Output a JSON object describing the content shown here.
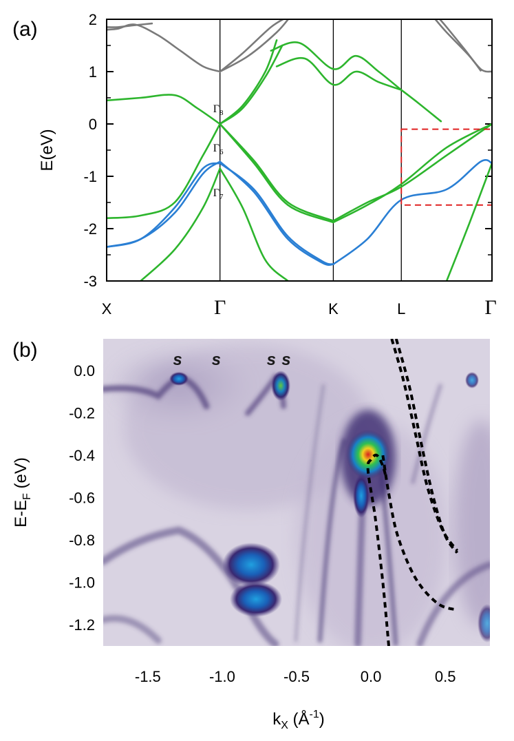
{
  "chart_data": [
    {
      "panel_label": "(a)",
      "type": "line",
      "ylabel": "E(eV)",
      "ylim": [
        -3,
        2
      ],
      "yticks": [
        "2",
        "1",
        "0",
        "-1",
        "-2",
        "-3"
      ],
      "k_points": [
        "X",
        "Γ",
        "K",
        "L",
        "Γ"
      ],
      "k_positions": [
        0,
        1,
        2,
        2.6,
        3.4
      ],
      "gamma_labels": [
        "Γ8",
        "Γ6",
        "Γ7"
      ],
      "colors": {
        "upper": "#7a7a7a",
        "valence": "#2db52d",
        "split_off": "#2a7fd4",
        "box": "#e02020"
      },
      "highlight_box": {
        "k": [
          2.6,
          3.4
        ],
        "E": [
          -1.55,
          -0.1
        ]
      },
      "series": [
        {
          "group": "upper",
          "x": [
            0,
            0.1,
            0.25,
            0.45,
            0.65,
            0.85,
            1.0
          ],
          "y": [
            1.8,
            1.82,
            1.9,
            1.7,
            1.4,
            1.1,
            1.0
          ]
        },
        {
          "group": "upper",
          "x": [
            0,
            0.1,
            0.22,
            0.4
          ],
          "y": [
            1.85,
            1.85,
            1.88,
            1.92
          ]
        },
        {
          "group": "upper",
          "x": [
            1.0,
            1.2,
            1.45,
            1.6
          ],
          "y": [
            1.0,
            1.35,
            1.85,
            2.05
          ]
        },
        {
          "group": "upper",
          "x": [
            1.0,
            1.25,
            1.5,
            1.62
          ],
          "y": [
            1.0,
            1.3,
            1.75,
            2.05
          ]
        },
        {
          "group": "upper",
          "x": [
            3.3,
            3.2,
            3.0,
            2.9
          ],
          "y": [
            1.02,
            1.3,
            1.75,
            2.0
          ]
        },
        {
          "group": "upper",
          "x": [
            3.4,
            3.3,
            3.15,
            3.0,
            2.92
          ],
          "y": [
            1.0,
            1.05,
            1.45,
            1.85,
            2.05
          ]
        },
        {
          "group": "valence",
          "x": [
            0,
            0.3,
            0.6,
            0.8,
            1.0
          ],
          "y": [
            0.45,
            0.5,
            0.55,
            0.3,
            0.0
          ]
        },
        {
          "group": "valence",
          "x": [
            1.0,
            1.2,
            1.4,
            1.5
          ],
          "y": [
            0.0,
            0.35,
            1.0,
            1.6
          ]
        },
        {
          "group": "valence",
          "x": [
            1.0,
            1.2,
            1.4,
            1.55
          ],
          "y": [
            0.0,
            0.3,
            0.9,
            1.5
          ]
        },
        {
          "group": "valence",
          "x": [
            1.45,
            1.7,
            2.0,
            2.2,
            2.4,
            2.6
          ],
          "y": [
            1.4,
            1.55,
            1.05,
            1.3,
            1.0,
            0.65
          ]
        },
        {
          "group": "valence",
          "x": [
            1.5,
            1.75,
            2.0,
            2.2,
            2.4,
            2.6
          ],
          "y": [
            1.1,
            1.25,
            0.75,
            1.0,
            0.8,
            0.65
          ]
        },
        {
          "group": "valence",
          "x": [
            2.6,
            2.75,
            2.95
          ],
          "y": [
            0.65,
            0.4,
            0.05
          ]
        },
        {
          "group": "valence",
          "x": [
            0,
            0.3,
            0.6,
            0.85,
            1.0
          ],
          "y": [
            -1.8,
            -1.75,
            -1.5,
            -0.6,
            0.0
          ]
        },
        {
          "group": "valence",
          "x": [
            1.0,
            1.3,
            1.6,
            2.0
          ],
          "y": [
            0.0,
            -0.7,
            -1.5,
            -1.85
          ]
        },
        {
          "group": "valence",
          "x": [
            1.0,
            1.3,
            1.6,
            2.0
          ],
          "y": [
            0.0,
            -0.75,
            -1.55,
            -1.88
          ]
        },
        {
          "group": "valence",
          "x": [
            2.0,
            2.3,
            2.6,
            3.0,
            3.4
          ],
          "y": [
            -1.85,
            -1.5,
            -1.2,
            -0.6,
            0.0
          ]
        },
        {
          "group": "valence",
          "x": [
            2.0,
            2.3,
            2.6,
            3.0,
            3.4
          ],
          "y": [
            -1.88,
            -1.55,
            -1.15,
            -0.45,
            0.0
          ]
        },
        {
          "group": "valence",
          "x": [
            0.3,
            0.6,
            0.85,
            1.0
          ],
          "y": [
            -3.0,
            -2.4,
            -1.6,
            -0.85
          ]
        },
        {
          "group": "valence",
          "x": [
            1.0,
            1.2,
            1.4,
            1.6
          ],
          "y": [
            -0.85,
            -1.6,
            -2.6,
            -3.0
          ]
        },
        {
          "group": "valence",
          "x": [
            3.0,
            3.2,
            3.4
          ],
          "y": [
            -3.0,
            -1.9,
            -0.75
          ]
        },
        {
          "group": "split_off",
          "x": [
            0,
            0.3,
            0.6,
            0.85,
            1.0
          ],
          "y": [
            -2.35,
            -2.2,
            -1.7,
            -0.95,
            -0.72
          ]
        },
        {
          "group": "split_off",
          "x": [
            0,
            0.3,
            0.6,
            0.85,
            1.0
          ],
          "y": [
            -2.35,
            -2.2,
            -1.6,
            -0.85,
            -0.75
          ]
        },
        {
          "group": "split_off",
          "x": [
            1.0,
            1.3,
            1.6,
            1.9,
            2.0
          ],
          "y": [
            -0.72,
            -1.3,
            -2.2,
            -2.65,
            -2.68
          ]
        },
        {
          "group": "split_off",
          "x": [
            1.0,
            1.3,
            1.6,
            1.9,
            2.0
          ],
          "y": [
            -0.75,
            -1.25,
            -2.15,
            -2.62,
            -2.68
          ]
        },
        {
          "group": "split_off",
          "x": [
            2.0,
            2.3,
            2.6,
            3.0,
            3.3,
            3.4
          ],
          "y": [
            -2.68,
            -2.2,
            -1.45,
            -1.25,
            -0.72,
            -0.75
          ]
        }
      ]
    },
    {
      "panel_label": "(b)",
      "type": "heatmap",
      "xlabel": "k",
      "xlabel_sub": "X",
      "xlabel_unit": " (Å",
      "xlabel_unit_sup": "-1",
      "xlabel_close": ")",
      "ylabel": "E-E",
      "ylabel_sub": "F",
      "ylabel_unit": " (eV)",
      "xlim": [
        -1.8,
        0.8
      ],
      "ylim": [
        -1.3,
        0.15
      ],
      "xticks": [
        "-1.5",
        "-1.0",
        "-0.5",
        "0.0",
        "0.5"
      ],
      "xtick_values": [
        -1.5,
        -1.0,
        -0.5,
        0.0,
        0.5
      ],
      "yticks": [
        "0.0",
        "-0.2",
        "-0.4",
        "-0.6",
        "-0.8",
        "-1.0",
        "-1.2"
      ],
      "ytick_values": [
        0.0,
        -0.2,
        -0.4,
        -0.6,
        -0.8,
        -1.0,
        -1.2
      ],
      "surface_state_marks": [
        {
          "text": "s",
          "k": -1.3
        },
        {
          "text": "s",
          "k": -1.04
        },
        {
          "text": "s",
          "k": -0.67
        },
        {
          "text": "s",
          "k": -0.57
        }
      ],
      "dashed_curves": [
        {
          "x": [
            0.12,
            0.08,
            0.03,
            -0.02,
            0.0,
            0.04,
            0.08,
            0.1
          ],
          "y": [
            -1.3,
            -1.0,
            -0.7,
            -0.47,
            -0.42,
            -0.4,
            -0.45,
            -0.5
          ]
        },
        {
          "x": [
            0.08,
            0.12,
            0.18,
            0.3,
            0.45,
            0.58
          ],
          "y": [
            -0.4,
            -0.58,
            -0.78,
            -0.98,
            -1.1,
            -1.13
          ]
        },
        {
          "x": [
            0.14,
            0.22,
            0.3,
            0.38,
            0.48,
            0.58
          ],
          "y": [
            0.15,
            -0.05,
            -0.3,
            -0.55,
            -0.75,
            -0.85
          ]
        },
        {
          "x": [
            0.17,
            0.26,
            0.34,
            0.42,
            0.5,
            0.58
          ],
          "y": [
            0.15,
            -0.08,
            -0.35,
            -0.6,
            -0.78,
            -0.86
          ]
        }
      ],
      "intensity_spots": [
        {
          "k": -0.03,
          "E": -0.44,
          "level": "max"
        },
        {
          "k": -0.78,
          "E": -0.93,
          "level": "medium"
        },
        {
          "k": -0.82,
          "E": -1.06,
          "level": "medium"
        },
        {
          "k": -1.29,
          "E": 0.0,
          "level": "medium"
        },
        {
          "k": -0.6,
          "E": -0.03,
          "level": "medium"
        },
        {
          "k": 0.65,
          "E": -0.01,
          "level": "low"
        }
      ]
    }
  ]
}
